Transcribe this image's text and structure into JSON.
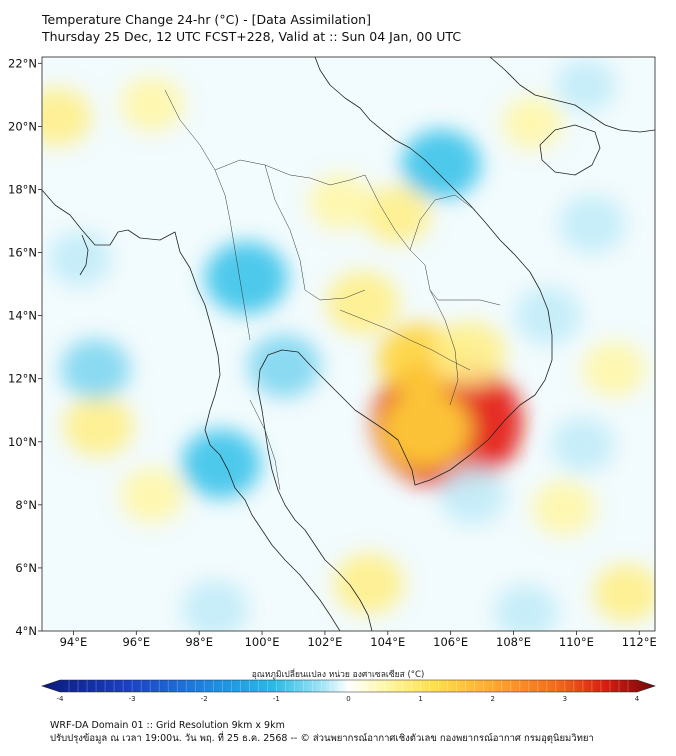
{
  "header": {
    "title_line1": "Temperature Change 24-hr (°C) - [Data Assimilation]",
    "title_line2": "Thursday 25 Dec, 12 UTC FCST+228, Valid at :: Sun 04 Jan, 00 UTC"
  },
  "map": {
    "lat_labels": [
      "22°N",
      "20°N",
      "18°N",
      "16°N",
      "14°N",
      "12°N",
      "10°N",
      "8°N",
      "6°N",
      "4°N"
    ],
    "lon_labels": [
      "94°E",
      "96°E",
      "98°E",
      "100°E",
      "102°E",
      "104°E",
      "106°E",
      "108°E",
      "110°E",
      "112°E"
    ],
    "field_anomalies": [
      {
        "lon": 105.9,
        "lat": 10.6,
        "value": 3.1
      },
      {
        "lon": 105.2,
        "lat": 10.4,
        "value": 1.2
      },
      {
        "lon": 105.0,
        "lat": 12.6,
        "value": 1.0
      },
      {
        "lon": 106.6,
        "lat": 12.8,
        "value": 0.7
      },
      {
        "lon": 103.2,
        "lat": 14.4,
        "value": 0.7
      },
      {
        "lon": 104.3,
        "lat": 17.2,
        "value": 0.5
      },
      {
        "lon": 102.5,
        "lat": 17.6,
        "value": 0.4
      },
      {
        "lon": 96.5,
        "lat": 20.7,
        "value": 0.4
      },
      {
        "lon": 93.5,
        "lat": 20.3,
        "value": 0.5
      },
      {
        "lon": 94.8,
        "lat": 10.5,
        "value": 0.6
      },
      {
        "lon": 96.5,
        "lat": 8.3,
        "value": 0.4
      },
      {
        "lon": 103.4,
        "lat": 5.5,
        "value": 0.6
      },
      {
        "lon": 109.6,
        "lat": 7.9,
        "value": 0.4
      },
      {
        "lon": 111.6,
        "lat": 5.2,
        "value": 0.5
      },
      {
        "lon": 111.2,
        "lat": 12.3,
        "value": 0.4
      },
      {
        "lon": 108.6,
        "lat": 20.1,
        "value": 0.3
      },
      {
        "lon": 99.5,
        "lat": 15.2,
        "value": -1.0
      },
      {
        "lon": 100.7,
        "lat": 12.4,
        "value": -0.7
      },
      {
        "lon": 98.7,
        "lat": 9.3,
        "value": -0.9
      },
      {
        "lon": 105.7,
        "lat": 18.8,
        "value": -0.9
      },
      {
        "lon": 94.7,
        "lat": 12.3,
        "value": -0.6
      },
      {
        "lon": 94.2,
        "lat": 15.8,
        "value": -0.4
      },
      {
        "lon": 109.1,
        "lat": 14.0,
        "value": -0.5
      },
      {
        "lon": 110.5,
        "lat": 16.9,
        "value": -0.5
      },
      {
        "lon": 110.2,
        "lat": 9.9,
        "value": -0.4
      },
      {
        "lon": 106.7,
        "lat": 8.3,
        "value": -0.5
      },
      {
        "lon": 98.5,
        "lat": 4.7,
        "value": -0.5
      },
      {
        "lon": 108.4,
        "lat": 4.6,
        "value": -0.4
      },
      {
        "lon": 110.3,
        "lat": 21.3,
        "value": -0.3
      }
    ]
  },
  "colorbar": {
    "label": "อุณหภูมิเปลี่ยนแปลง หน่วย องศาเซลเซียส (°C)",
    "ticks": [
      "-4",
      "-3",
      "-2",
      "-1",
      "0",
      "1",
      "2",
      "3",
      "4"
    ],
    "range": [
      -4,
      4
    ]
  },
  "footer": {
    "line1": "WRF-DA Domain 01 :: Grid Resolution 9km x 9km",
    "line2": "ปรับปรุงข้อมูล ณ เวลา 19:00น. วัน พฤ. ที่ 25 ธ.ค. 2568 -- © ส่วนพยากรณ์อากาศเชิงตัวเลข กองพยากรณ์อากาศ กรมอุตุนิยมวิทยา"
  },
  "colors": {
    "cold_extreme": "#0a1a7a",
    "cold": "#2bbbe6",
    "neutral": "#ffffff",
    "warm": "#fff7a8",
    "hot": "#f26a1b",
    "hot_extreme": "#6e0a0a"
  }
}
